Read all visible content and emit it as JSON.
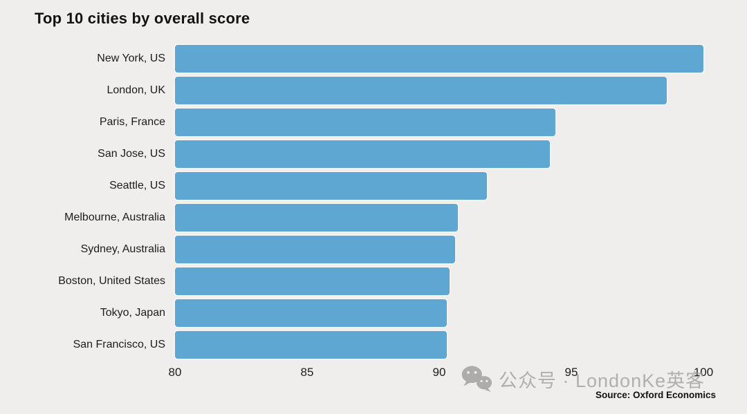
{
  "title": "Top 10 cities by overall score",
  "chart_data": {
    "type": "bar",
    "orientation": "horizontal",
    "title": "Top 10 cities by overall score",
    "categories": [
      "New York, US",
      "London, UK",
      "Paris, France",
      "San Jose, US",
      "Seattle, US",
      "Melbourne, Australia",
      "Sydney, Australia",
      "Boston, United States",
      "Tokyo, Japan",
      "San Francisco, US"
    ],
    "values": [
      100,
      98.6,
      94.4,
      94.2,
      91.8,
      90.7,
      90.6,
      90.4,
      90.3,
      90.3
    ],
    "xlabel": "",
    "ylabel": "",
    "xlim": [
      80,
      100
    ],
    "xticks": [
      80,
      85,
      90,
      95,
      100
    ],
    "grid": false,
    "legend": false,
    "bar_color": "#5fa7d3"
  },
  "source_label": "Source: Oxford Economics",
  "watermark": {
    "icon": "wechat-icon",
    "text": "公众号 · LondonKe英客"
  },
  "colors": {
    "background": "#efeeec",
    "bar": "#5fa7d3",
    "title_text": "#131313",
    "label_text": "#1c1c1c",
    "watermark_text": "#9f9e9c",
    "source_text": "#111111"
  }
}
